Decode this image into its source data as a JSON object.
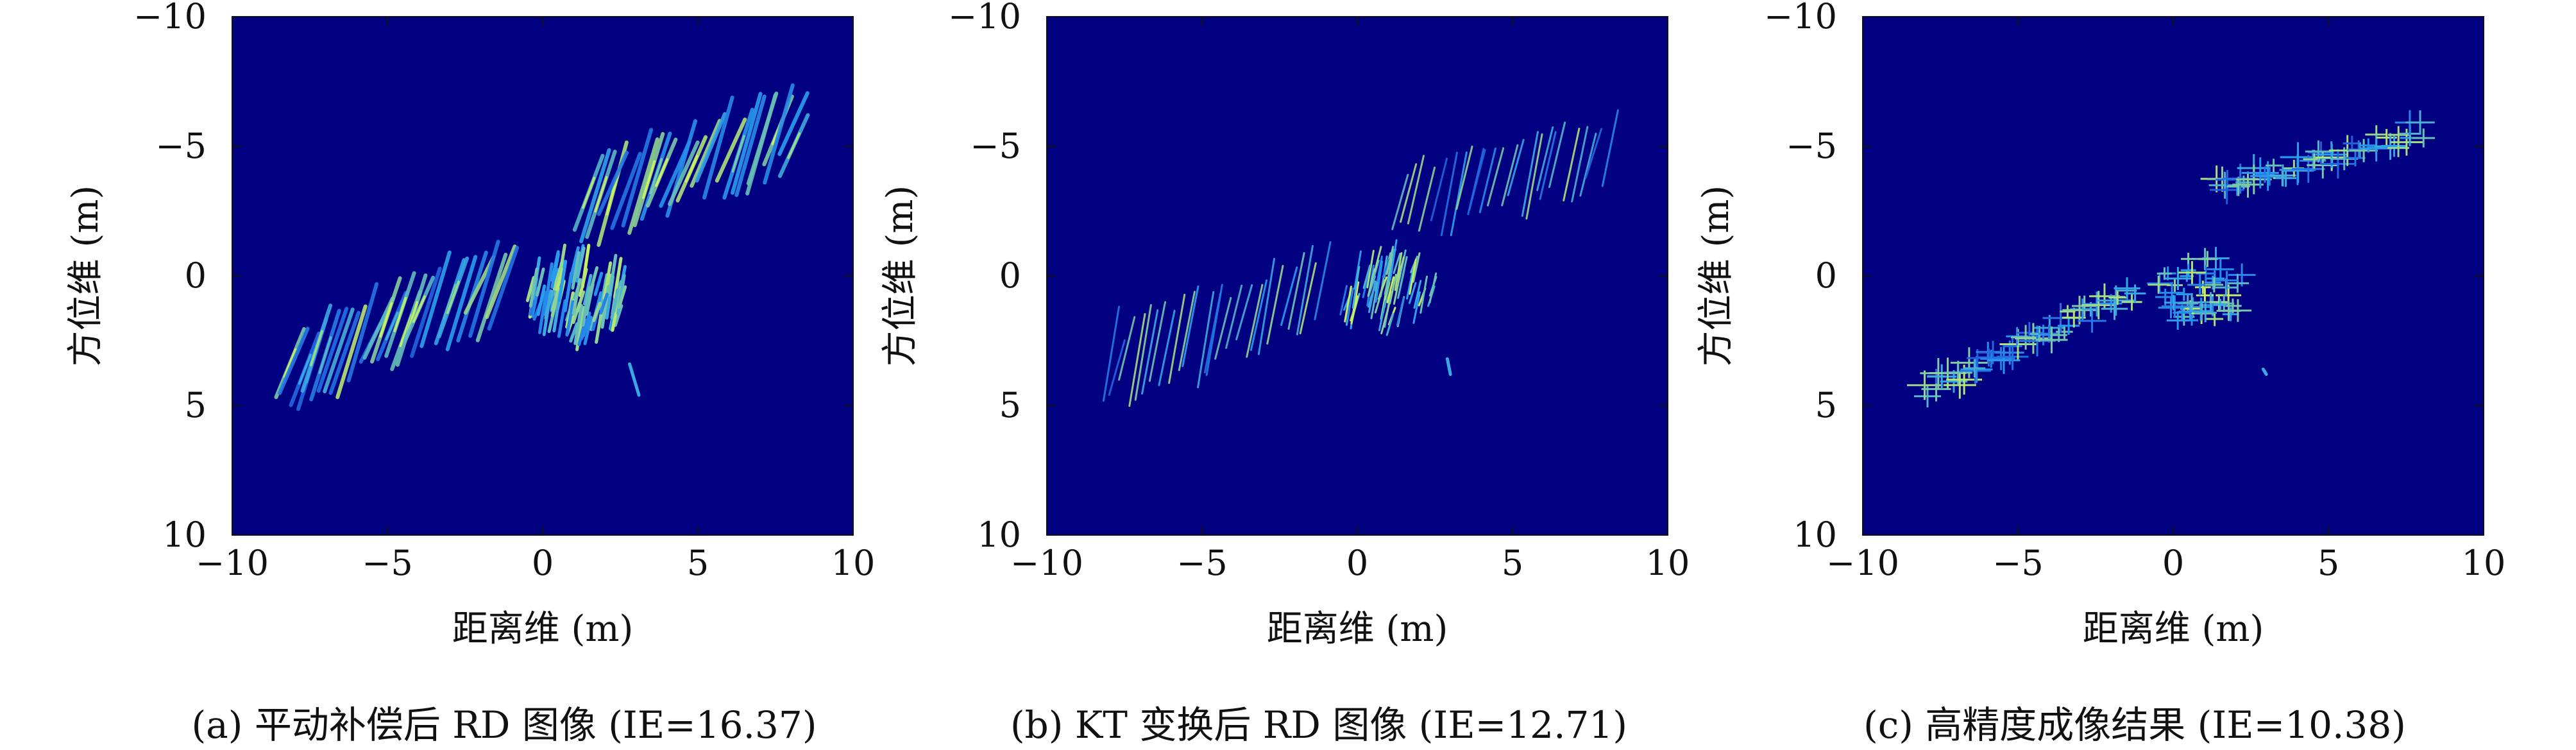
{
  "figure": {
    "colors": {
      "background": "#000080",
      "axis": "#111111",
      "map_low": "#1a33d0",
      "map_mid": "#2aa0f0",
      "map_high": "#c8f060"
    }
  },
  "chart_data": [
    {
      "type": "heatmap",
      "xlabel": "距离维 (m)",
      "ylabel": "方位维 (m)",
      "caption": "(a) 平动补偿后 RD 图像 (IE=16.37)",
      "xlim": [
        -10,
        10
      ],
      "ylim": [
        10,
        -10
      ],
      "xticks": [
        "−10",
        "−5",
        "0",
        "5",
        "10"
      ],
      "yticks": [
        "−10",
        "−5",
        "0",
        "5",
        "10"
      ],
      "style": "streaks",
      "segments": [
        {
          "x0": -8.2,
          "y0": 3.6,
          "x1": -1.2,
          "y1": 0.2,
          "n": 30,
          "len": 3.4,
          "dx": 0.9,
          "w": 6
        },
        {
          "x0": 1.4,
          "y0": -3.2,
          "x1": 8.2,
          "y1": -5.5,
          "n": 28,
          "len": 3.6,
          "dx": 0.9,
          "w": 6
        }
      ],
      "cluster": {
        "cx": 1.1,
        "cy": 0.8,
        "rx": 1.6,
        "ry": 1.4,
        "n": 90
      },
      "extras": [
        {
          "x0": 2.8,
          "y0": 3.4,
          "x1": 3.1,
          "y1": 4.6
        }
      ]
    },
    {
      "type": "heatmap",
      "xlabel": "距离维 (m)",
      "ylabel": "方位维 (m)",
      "caption": "(b) KT 变换后 RD 图像 (IE=12.71)",
      "xlim": [
        -10,
        10
      ],
      "ylim": [
        10,
        -10
      ],
      "xticks": [
        "−10",
        "−5",
        "0",
        "5",
        "10"
      ],
      "yticks": [
        "−10",
        "−5",
        "0",
        "5",
        "10"
      ],
      "style": "lines",
      "segments": [
        {
          "x0": -8.0,
          "y0": 3.4,
          "x1": -1.2,
          "y1": 0.4,
          "n": 26,
          "len": 3.4,
          "dx": 0.5,
          "w": 3
        },
        {
          "x0": 1.4,
          "y0": -3.0,
          "x1": 8.0,
          "y1": -4.8,
          "n": 24,
          "len": 3.0,
          "dx": 0.5,
          "w": 3
        }
      ],
      "cluster": {
        "cx": 1.0,
        "cy": 0.6,
        "rx": 1.5,
        "ry": 1.3,
        "n": 70
      },
      "extras": [
        {
          "x0": 2.9,
          "y0": 3.2,
          "x1": 3.0,
          "y1": 3.8
        }
      ]
    },
    {
      "type": "heatmap",
      "xlabel": "距离维 (m)",
      "ylabel": "方位维 (m)",
      "caption": "(c) 高精度成像结果 (IE=10.38)",
      "xlim": [
        -10,
        10
      ],
      "ylim": [
        10,
        -10
      ],
      "xticks": [
        "−10",
        "−5",
        "0",
        "5",
        "10"
      ],
      "yticks": [
        "−10",
        "−5",
        "0",
        "5",
        "10"
      ],
      "style": "points",
      "segments": [
        {
          "x0": -8.0,
          "y0": 4.4,
          "x1": -1.2,
          "y1": 0.6,
          "n": 60,
          "len": 2.6,
          "dx": 0.4,
          "w": 2
        },
        {
          "x0": 1.4,
          "y0": -3.4,
          "x1": 8.0,
          "y1": -5.6,
          "n": 56,
          "len": 2.6,
          "dx": 0.4,
          "w": 2
        }
      ],
      "cluster": {
        "cx": 1.0,
        "cy": 0.6,
        "rx": 1.5,
        "ry": 1.4,
        "n": 55
      },
      "extras": [
        {
          "x0": 2.9,
          "y0": 3.6,
          "x1": 3.0,
          "y1": 3.8
        }
      ]
    }
  ]
}
